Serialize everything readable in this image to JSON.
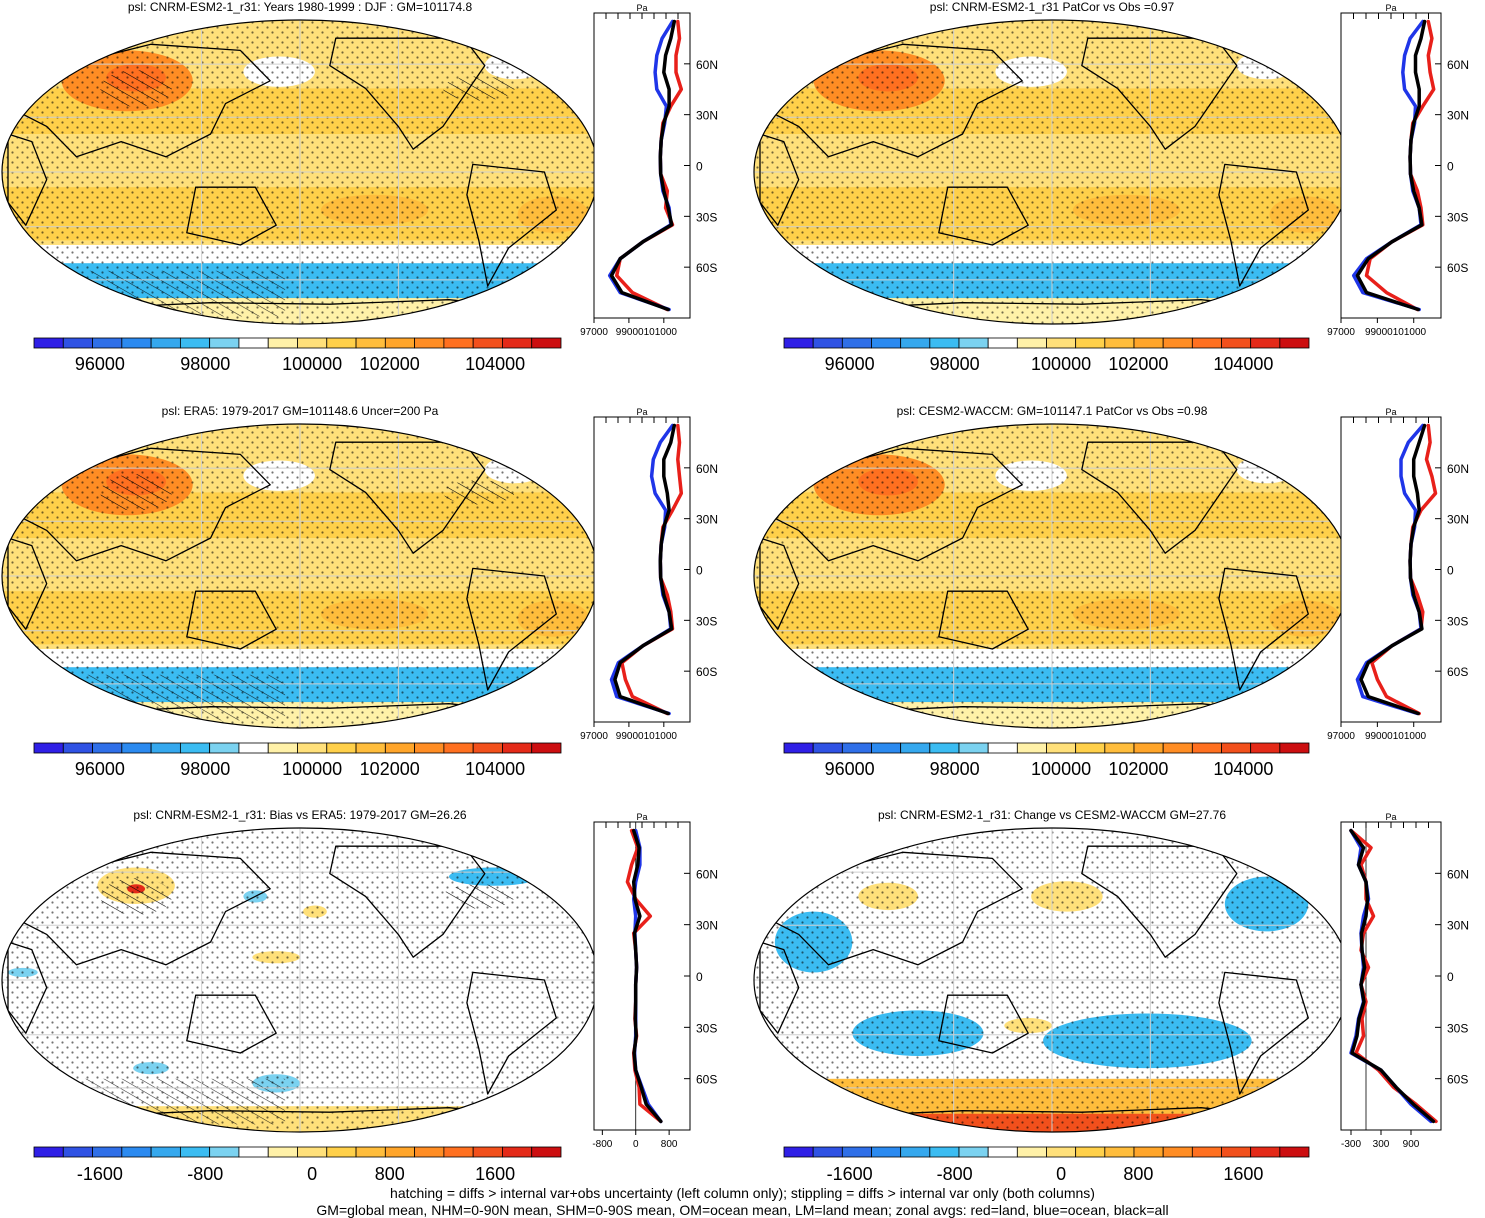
{
  "chart_data": {
    "type": "heatmap",
    "colors": {
      "scale": [
        "#2f1fe6",
        "#2f52e4",
        "#2f6fe8",
        "#2b8af0",
        "#35a8ee",
        "#3bbcf2",
        "#7bd2f0",
        "#ffffff",
        "#fff1a8",
        "#ffe07a",
        "#ffd04a",
        "#ffbd3c",
        "#ffa52a",
        "#ff8d24",
        "#ff7020",
        "#f2501c",
        "#e42a18",
        "#cc0e10"
      ],
      "land": "#e8201a",
      "ocean": "#1f35e8",
      "all": "#000000",
      "coast": "#000000",
      "grid": "#cfcfcf",
      "positive_fill": "#ffcc44",
      "negative_fill": "#7dc3ee"
    },
    "lat_tick_labels": [
      "60N",
      "30N",
      "0",
      "30S",
      "60S"
    ],
    "panels": [
      {
        "id": "model-clim",
        "title": "psl: CNRM-ESM2-1_r31: Years 1980-1999 : DJF : GM=101174.8",
        "kind": "clim",
        "has_hatching": true,
        "zonal": {
          "unit": "Pa",
          "xlim": [
            97000,
            102500
          ],
          "xticks": [
            97000,
            99000,
            101000
          ],
          "xtick_labels": [
            "97000",
            "99000101000"
          ],
          "lat": [
            85,
            75,
            65,
            55,
            45,
            35,
            25,
            15,
            5,
            -5,
            -15,
            -25,
            -35,
            -45,
            -55,
            -65,
            -75,
            -85
          ],
          "land": [
            101800,
            101900,
            101700,
            101700,
            102000,
            101400,
            100950,
            100850,
            100800,
            100820,
            101200,
            101100,
            101500,
            99800,
            98500,
            98300,
            99200,
            101200
          ],
          "ocean": [
            101500,
            100900,
            100600,
            100500,
            100600,
            101150,
            101050,
            100850,
            100800,
            100820,
            100950,
            101300,
            101400,
            99800,
            98500,
            97900,
            98500,
            101300
          ],
          "all": [
            101600,
            101400,
            101100,
            101000,
            101300,
            101300,
            101000,
            100850,
            100800,
            100820,
            101000,
            101250,
            101450,
            99800,
            98500,
            98000,
            98600,
            101250
          ]
        },
        "colorbar": {
          "tick_labels": [
            "96000",
            "98000",
            "100000",
            "102000",
            "104000"
          ]
        }
      },
      {
        "id": "model-patcor",
        "title": "psl: CNRM-ESM2-1_r31 PatCor vs Obs =0.97",
        "kind": "clim",
        "has_hatching": false,
        "zonal": {
          "unit": "Pa",
          "xlim": [
            97000,
            102500
          ],
          "xticks": [
            97000,
            99000,
            101000
          ],
          "xtick_labels": [
            "97000",
            "99000101000"
          ],
          "lat": [
            85,
            75,
            65,
            55,
            45,
            35,
            25,
            15,
            5,
            -5,
            -15,
            -25,
            -35,
            -45,
            -55,
            -65,
            -75,
            -85
          ],
          "land": [
            101800,
            102000,
            101800,
            101900,
            102100,
            101500,
            100950,
            100850,
            100800,
            100820,
            101200,
            101400,
            101500,
            99800,
            98600,
            98400,
            99500,
            101200
          ],
          "ocean": [
            101500,
            100800,
            100500,
            100400,
            100500,
            101100,
            101050,
            100850,
            100800,
            100820,
            100950,
            101300,
            101400,
            99800,
            98400,
            97700,
            98200,
            101300
          ],
          "all": [
            101600,
            101400,
            101100,
            101100,
            101300,
            101300,
            101000,
            100850,
            100800,
            100820,
            101000,
            101300,
            101450,
            99800,
            98500,
            97900,
            98400,
            101250
          ]
        },
        "colorbar": {
          "tick_labels": [
            "96000",
            "98000",
            "100000",
            "102000",
            "104000"
          ]
        }
      },
      {
        "id": "obs-clim",
        "title": "psl: ERA5: 1979-2017 GM=101148.6 Uncer=200 Pa",
        "kind": "clim",
        "has_hatching": true,
        "zonal": {
          "unit": "Pa",
          "xlim": [
            97000,
            102500
          ],
          "xticks": [
            97000,
            99000,
            101000
          ],
          "xtick_labels": [
            "97000",
            "99000101000"
          ],
          "lat": [
            85,
            75,
            65,
            55,
            45,
            35,
            25,
            15,
            5,
            -5,
            -15,
            -25,
            -35,
            -45,
            -55,
            -65,
            -75,
            -85
          ],
          "land": [
            101800,
            101900,
            101800,
            101900,
            102000,
            101500,
            100950,
            100850,
            100800,
            100820,
            101200,
            101400,
            101500,
            99800,
            98600,
            98800,
            99200,
            101200
          ],
          "ocean": [
            101500,
            100800,
            100400,
            100300,
            100500,
            101100,
            101050,
            100850,
            100800,
            100820,
            100950,
            101300,
            101400,
            99800,
            98400,
            98000,
            98300,
            101300
          ],
          "all": [
            101600,
            101400,
            101000,
            101000,
            101200,
            101300,
            101000,
            100850,
            100800,
            100820,
            101000,
            101300,
            101450,
            99800,
            98500,
            98200,
            98500,
            101250
          ]
        },
        "colorbar": {
          "tick_labels": [
            "96000",
            "98000",
            "100000",
            "102000",
            "104000"
          ]
        }
      },
      {
        "id": "ref-model-clim",
        "title": "psl: CESM2-WACCM: GM=101147.1 PatCor vs Obs =0.98",
        "kind": "clim",
        "has_hatching": false,
        "zonal": {
          "unit": "Pa",
          "xlim": [
            97000,
            102500
          ],
          "xticks": [
            97000,
            99000,
            101000
          ],
          "xtick_labels": [
            "97000",
            "99000101000"
          ],
          "lat": [
            85,
            75,
            65,
            55,
            45,
            35,
            25,
            15,
            5,
            -5,
            -15,
            -25,
            -35,
            -45,
            -55,
            -65,
            -75,
            -85
          ],
          "land": [
            101800,
            101900,
            101700,
            102000,
            102200,
            101400,
            100950,
            100850,
            100800,
            100820,
            101200,
            101500,
            101400,
            99800,
            98700,
            99000,
            99500,
            101300
          ],
          "ocean": [
            101500,
            100700,
            100300,
            100300,
            100500,
            101100,
            101050,
            100850,
            100800,
            100820,
            100950,
            101300,
            101400,
            99800,
            98400,
            97900,
            98200,
            101200
          ],
          "all": [
            101600,
            101300,
            101000,
            101000,
            101200,
            101300,
            101000,
            100850,
            100800,
            100820,
            101000,
            101300,
            101450,
            99800,
            98500,
            98100,
            98500,
            101250
          ]
        },
        "colorbar": {
          "tick_labels": [
            "96000",
            "98000",
            "100000",
            "102000",
            "104000"
          ]
        }
      },
      {
        "id": "bias",
        "title": "psl: CNRM-ESM2-1_r31: Bias vs ERA5: 1979-2017 GM=26.26",
        "kind": "diff",
        "has_hatching": true,
        "zonal": {
          "unit": "Pa",
          "xlim": [
            -1000,
            1300
          ],
          "xticks": [
            -800,
            0,
            800
          ],
          "xtick_labels": [
            "-800",
            "0",
            "800"
          ],
          "lat": [
            85,
            75,
            65,
            55,
            45,
            35,
            25,
            15,
            5,
            -5,
            -15,
            -25,
            -35,
            -45,
            -55,
            -65,
            -75,
            -85
          ],
          "land": [
            -100,
            50,
            -100,
            -200,
            0,
            350,
            -50,
            0,
            20,
            0,
            0,
            -20,
            20,
            -50,
            -20,
            80,
            100,
            600
          ],
          "ocean": [
            0,
            100,
            100,
            0,
            -50,
            0,
            -20,
            0,
            20,
            0,
            0,
            0,
            0,
            -30,
            0,
            150,
            300,
            600
          ],
          "all": [
            -50,
            80,
            50,
            -50,
            -20,
            100,
            -30,
            0,
            20,
            0,
            0,
            -10,
            10,
            -40,
            0,
            130,
            250,
            600
          ]
        },
        "colorbar": {
          "tick_labels": [
            "-1600",
            "-800",
            "0",
            "800",
            "1600"
          ]
        }
      },
      {
        "id": "change",
        "title": "psl: CNRM-ESM2-1_r31: Change vs CESM2-WACCM GM=27.76",
        "kind": "diff",
        "has_hatching": false,
        "zonal": {
          "unit": "Pa",
          "xlim": [
            -500,
            1500
          ],
          "xticks": [
            -300,
            300,
            900
          ],
          "xtick_labels": [
            "-300",
            "300",
            "900"
          ],
          "lat": [
            85,
            75,
            65,
            55,
            45,
            35,
            25,
            15,
            5,
            -5,
            -15,
            -25,
            -35,
            -45,
            -55,
            -65,
            -75,
            -85
          ],
          "land": [
            -300,
            100,
            -100,
            0,
            0,
            150,
            -50,
            -100,
            50,
            -100,
            0,
            -80,
            -50,
            -200,
            250,
            550,
            1000,
            1400
          ],
          "ocean": [
            -300,
            -100,
            -150,
            0,
            50,
            -50,
            -100,
            -80,
            -50,
            -100,
            -50,
            -150,
            -200,
            -300,
            300,
            600,
            900,
            1300
          ],
          "all": [
            -300,
            -50,
            -150,
            0,
            30,
            0,
            -90,
            -80,
            -30,
            -100,
            -40,
            -140,
            -180,
            -280,
            300,
            600,
            950,
            1350
          ]
        },
        "colorbar": {
          "tick_labels": [
            "-1600",
            "-800",
            "0",
            "800",
            "1600"
          ]
        }
      }
    ],
    "footnote_lines": [
      "hatching = diffs > internal var+obs uncertainty (left column only); stippling = diffs > internal var only (both columns)",
      "GM=global mean, NHM=0-90N mean, SHM=0-90S mean, OM=ocean mean, LM=land mean; zonal avgs: red=land, blue=ocean, black=all"
    ]
  }
}
